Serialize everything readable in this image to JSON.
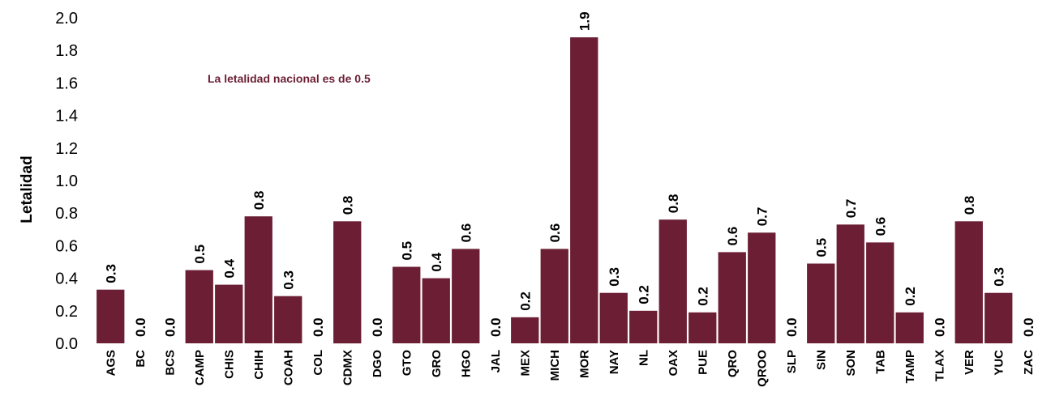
{
  "chart_data": {
    "type": "bar",
    "title": "",
    "xlabel": "",
    "ylabel": "Letalidad",
    "ylim": [
      0,
      2.0
    ],
    "yticks": [
      "0.0",
      "0.2",
      "0.4",
      "0.6",
      "0.8",
      "1.0",
      "1.2",
      "1.4",
      "1.6",
      "1.8",
      "2.0"
    ],
    "grid": false,
    "bar_color": "#6b1e34",
    "annotation_color": "#6b1e34",
    "annotation": "La letalidad nacional  es de 0.5",
    "categories": [
      "AGS",
      "BC",
      "BCS",
      "CAMP",
      "CHIS",
      "CHIH",
      "COAH",
      "COL",
      "CDMX",
      "DGO",
      "GTO",
      "GRO",
      "HGO",
      "JAL",
      "MEX",
      "MICH",
      "MOR",
      "NAY",
      "NL",
      "OAX",
      "PUE",
      "QRO",
      "QROO",
      "SLP",
      "SIN",
      "SON",
      "TAB",
      "TAMP",
      "TLAX",
      "VER",
      "YUC",
      "ZAC"
    ],
    "values": [
      0.33,
      0.0,
      0.0,
      0.45,
      0.36,
      0.78,
      0.29,
      0.0,
      0.75,
      0.0,
      0.47,
      0.4,
      0.58,
      0.0,
      0.16,
      0.58,
      1.88,
      0.31,
      0.2,
      0.76,
      0.19,
      0.56,
      0.68,
      0.0,
      0.49,
      0.73,
      0.62,
      0.19,
      0.0,
      0.75,
      0.31,
      0.0
    ],
    "data_labels": [
      "0.3",
      "0.0",
      "0.0",
      "0.5",
      "0.4",
      "0.8",
      "0.3",
      "0.0",
      "0.8",
      "0.0",
      "0.5",
      "0.4",
      "0.6",
      "0.0",
      "0.2",
      "0.6",
      "1.9",
      "0.3",
      "0.2",
      "0.8",
      "0.2",
      "0.6",
      "0.7",
      "0.0",
      "0.5",
      "0.7",
      "0.6",
      "0.2",
      "0.0",
      "0.8",
      "0.3",
      "0.0"
    ]
  }
}
